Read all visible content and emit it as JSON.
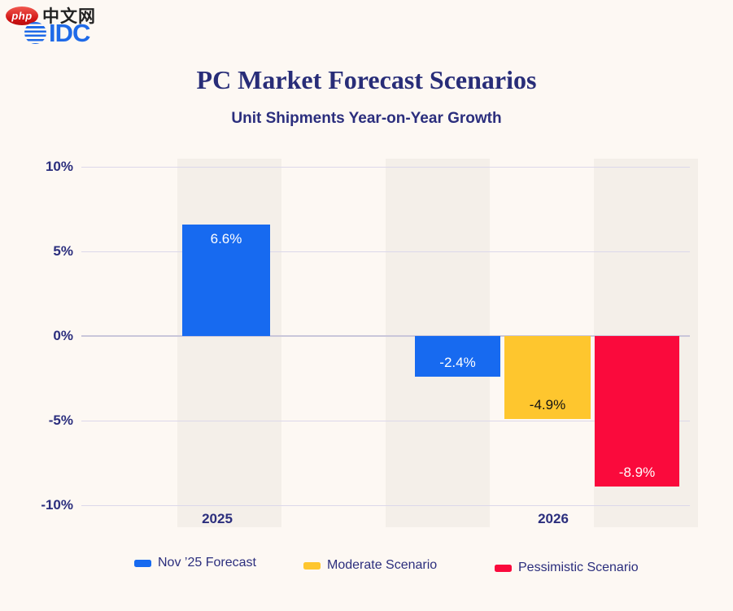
{
  "branding": {
    "php_badge": "php",
    "php_site": "中文网",
    "idc": "IDC"
  },
  "colors": {
    "background": "#FDF8F3",
    "stripe": "#F4EFE9",
    "gridline": "#DCD8EA",
    "zero_line": "#C9C6DA",
    "navy_text": "#2B2E7D",
    "blue": "#176AF0",
    "yellow": "#FEC62E",
    "red": "#FA0A3C"
  },
  "chart_data": {
    "type": "bar",
    "title": "PC Market Forecast Scenarios",
    "subtitle": "Unit Shipments Year-on-Year Growth",
    "xlabel": "",
    "ylabel": "",
    "ylim": [
      -10,
      10
    ],
    "grid": true,
    "legend_position": "bottom",
    "categories": [
      "2025",
      "2026"
    ],
    "yticks": [
      {
        "value": 10,
        "label": "10%"
      },
      {
        "value": 5,
        "label": "5%"
      },
      {
        "value": 0,
        "label": "0%"
      },
      {
        "value": -5,
        "label": "-5%"
      },
      {
        "value": -10,
        "label": "-10%"
      }
    ],
    "series": [
      {
        "name": "Nov ’25 Forecast",
        "color": "#176AF0",
        "values": [
          6.6,
          -2.4
        ]
      },
      {
        "name": "Moderate Scenario",
        "color": "#FEC62E",
        "values": [
          null,
          -4.9
        ]
      },
      {
        "name": "Pessimistic Scenario",
        "color": "#FA0A3C",
        "values": [
          null,
          -8.9
        ]
      }
    ],
    "bars": [
      {
        "category": "2025",
        "series": "Nov ’25 Forecast",
        "value": 6.6,
        "label": "6.6%",
        "color": "#176AF0",
        "label_color": "#FFFFFF"
      },
      {
        "category": "2026",
        "series": "Nov ’25 Forecast",
        "value": -2.4,
        "label": "-2.4%",
        "color": "#176AF0",
        "label_color": "#FFFFFF"
      },
      {
        "category": "2026",
        "series": "Moderate Scenario",
        "value": -4.9,
        "label": "-4.9%",
        "color": "#FEC62E",
        "label_color": "#131313"
      },
      {
        "category": "2026",
        "series": "Pessimistic Scenario",
        "value": -8.9,
        "label": "-8.9%",
        "color": "#FA0A3C",
        "label_color": "#FFFFFF"
      }
    ]
  },
  "legend": {
    "items": [
      {
        "label": "Nov ’25 Forecast",
        "color": "#176AF0"
      },
      {
        "label": "Moderate Scenario",
        "color": "#FEC62E"
      },
      {
        "label": "Pessimistic Scenario",
        "color": "#FA0A3C"
      }
    ]
  }
}
